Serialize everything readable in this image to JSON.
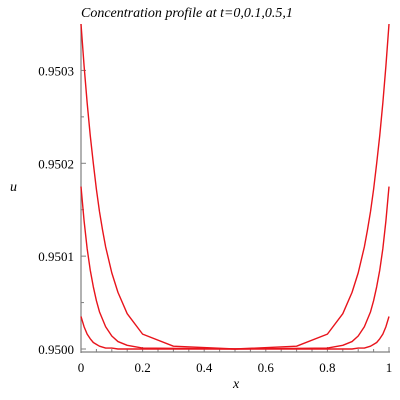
{
  "chart_data": {
    "type": "line",
    "title": "Concentration profile at t=0,0.1,0.5,1",
    "xlabel": "x",
    "ylabel": "u",
    "xlim": [
      0,
      1
    ],
    "ylim": [
      0.95,
      0.95035
    ],
    "grid": false,
    "x_ticks": [
      "0",
      "0.2",
      "0.4",
      "0.6",
      "0.8",
      "1"
    ],
    "y_ticks": [
      "0.9500",
      "0.9501",
      "0.9502",
      "0.9503"
    ],
    "x_tick_values": [
      0,
      0.2,
      0.4,
      0.6,
      0.8,
      1
    ],
    "y_tick_values": [
      0.95,
      0.9501,
      0.9502,
      0.9503
    ],
    "line_color": "#e8141c",
    "axis_color": "#7f7f7f",
    "series": [
      {
        "x": [
          0,
          0.01,
          0.02,
          0.03,
          0.04,
          0.05,
          0.06,
          0.07,
          0.08,
          0.1,
          0.12,
          0.15,
          0.2,
          0.3,
          0.5,
          0.7,
          0.8,
          0.85,
          0.88,
          0.9,
          0.92,
          0.93,
          0.94,
          0.95,
          0.96,
          0.97,
          0.98,
          0.99,
          1
        ],
        "y": [
          0.95035,
          0.950305,
          0.950265,
          0.95023,
          0.9502,
          0.950172,
          0.950148,
          0.950128,
          0.95011,
          0.950082,
          0.950061,
          0.950038,
          0.950016,
          0.950003,
          0.95,
          0.950003,
          0.950016,
          0.950038,
          0.950061,
          0.950082,
          0.95011,
          0.950128,
          0.950148,
          0.950172,
          0.9502,
          0.95023,
          0.950265,
          0.950305,
          0.95035
        ]
      },
      {
        "x": [
          0,
          0.01,
          0.02,
          0.03,
          0.04,
          0.05,
          0.06,
          0.08,
          0.1,
          0.12,
          0.15,
          0.2,
          0.5,
          0.8,
          0.85,
          0.88,
          0.9,
          0.92,
          0.94,
          0.95,
          0.96,
          0.97,
          0.98,
          0.99,
          1
        ],
        "y": [
          0.950175,
          0.950138,
          0.950108,
          0.950085,
          0.950067,
          0.950052,
          0.95004,
          0.950024,
          0.950014,
          0.950008,
          0.950004,
          0.950001,
          0.95,
          0.950001,
          0.950004,
          0.950008,
          0.950014,
          0.950024,
          0.95004,
          0.950052,
          0.950067,
          0.950085,
          0.950108,
          0.950138,
          0.950175
        ]
      },
      {
        "x": [
          0,
          0.01,
          0.02,
          0.03,
          0.04,
          0.05,
          0.06,
          0.08,
          0.1,
          0.12,
          0.2,
          0.5,
          0.8,
          0.88,
          0.9,
          0.92,
          0.94,
          0.95,
          0.96,
          0.97,
          0.98,
          0.99,
          1
        ],
        "y": [
          0.950035,
          0.950024,
          0.950016,
          0.950011,
          0.950007,
          0.950005,
          0.950003,
          0.950001,
          0.950001,
          0.95,
          0.95,
          0.95,
          0.95,
          0.95,
          0.950001,
          0.950001,
          0.950003,
          0.950005,
          0.950007,
          0.950011,
          0.950016,
          0.950024,
          0.950035
        ]
      }
    ]
  }
}
